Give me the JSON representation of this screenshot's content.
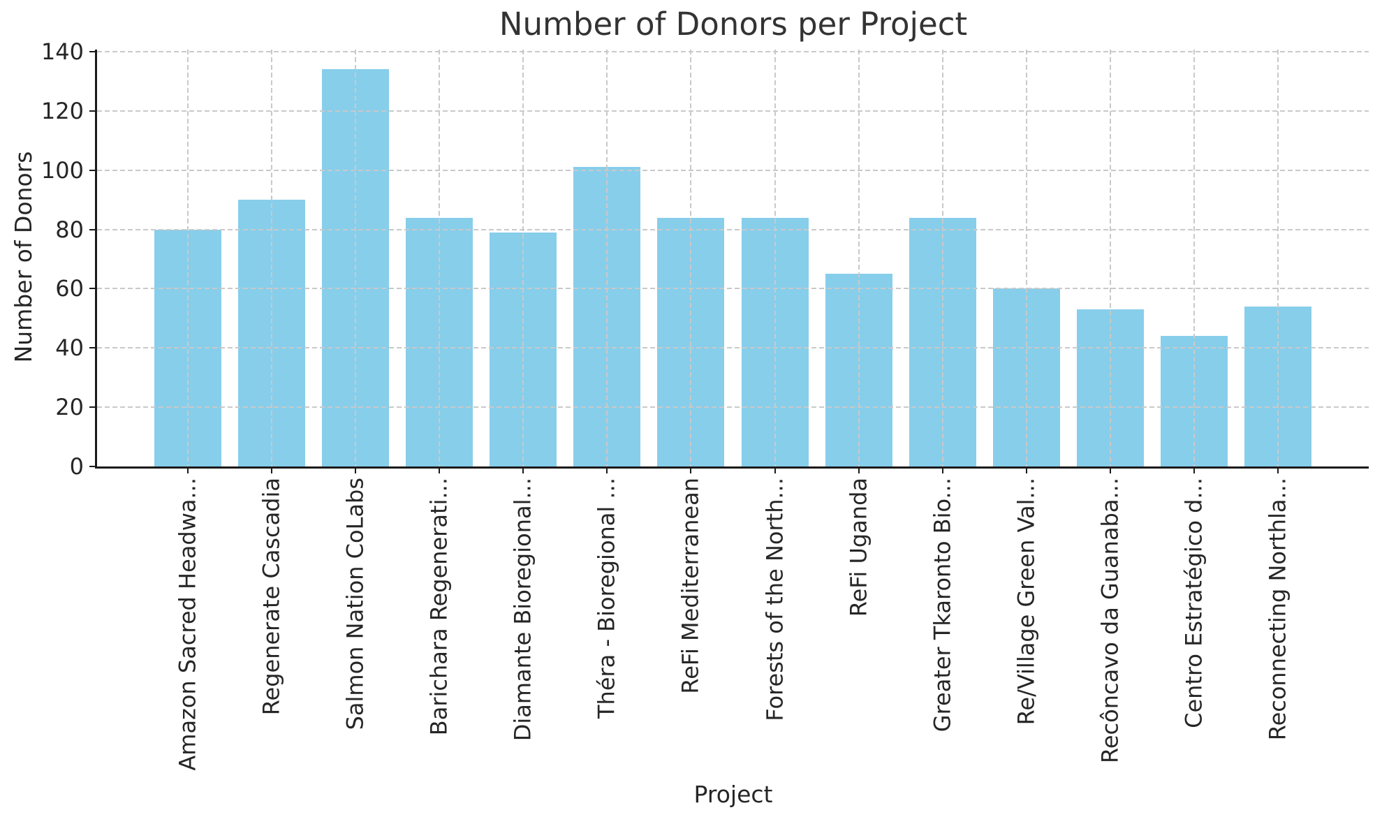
{
  "chart_data": {
    "type": "bar",
    "title": "Number of Donors per Project",
    "xlabel": "Project",
    "ylabel": "Number of Donors",
    "categories": [
      "Amazon Sacred Headwa...",
      "Regenerate Cascadia",
      "Salmon Nation CoLabs",
      "Barichara Regenerati...",
      "Diamante Bioregional...",
      "Théra - Bioregional ...",
      "ReFi Mediterranean",
      "Forests of the North...",
      "ReFi Uganda",
      "Greater Tkaronto Bio...",
      "Re/Village Green Val...",
      "Recôncavo da Guanaba...",
      "Centro Estratégico d...",
      "Reconnecting Northla..."
    ],
    "values": [
      80,
      90,
      134,
      84,
      79,
      101,
      84,
      84,
      65,
      84,
      60,
      53,
      44,
      54
    ],
    "yticks": [
      0,
      20,
      40,
      60,
      80,
      100,
      120,
      140
    ],
    "ylim": [
      0,
      140.7
    ],
    "grid": true,
    "grid_style": "dashed",
    "legend": "none",
    "bar_color": "#87CEEB",
    "grid_color": "#c9c9c9",
    "spine_color": "#1a1a1a",
    "title_color": "#333333",
    "text_color": "#262626",
    "background_color": "#ffffff"
  }
}
